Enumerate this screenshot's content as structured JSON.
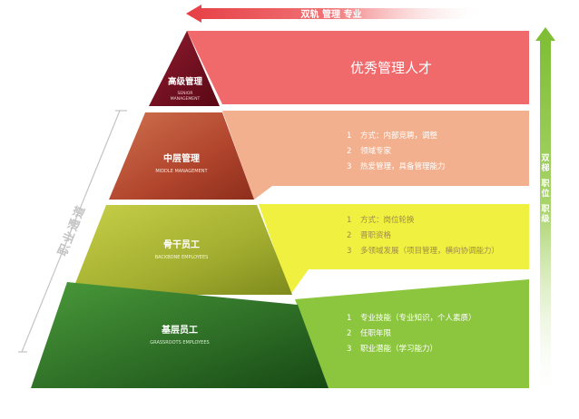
{
  "top_arrow": {
    "label": "双轨 管理 专业"
  },
  "right_arrow": {
    "label_chars": [
      "双",
      "梯",
      "职",
      "位",
      "职",
      "级"
    ]
  },
  "left_channel": {
    "label_chars": [
      "职",
      "业",
      "通",
      "道"
    ]
  },
  "levels": [
    {
      "title": "高级管理",
      "subtitle_lines": [
        "SENIOR",
        "MANAGEMENT"
      ],
      "band_text": "优秀管理人才",
      "items": []
    },
    {
      "title": "中层管理",
      "subtitle_lines": [
        "MIDDLE MANAGEMENT"
      ],
      "items": [
        {
          "num": "1",
          "text": "方式：内部竞聘，调整"
        },
        {
          "num": "2",
          "text": "领域专家"
        },
        {
          "num": "3",
          "text": "热爱管理，具备管理能力"
        }
      ]
    },
    {
      "title": "骨干员工",
      "subtitle_lines": [
        "BACKBONE EMPLOYEES"
      ],
      "items": [
        {
          "num": "1",
          "text": "方式：岗位轮换"
        },
        {
          "num": "2",
          "text": "晋职资格"
        },
        {
          "num": "3",
          "text": "多领域发展（项目管理，横向协调能力）"
        }
      ]
    },
    {
      "title": "基层员工",
      "subtitle_lines": [
        "GRASSROOTS EMPLOYEES"
      ],
      "items": [
        {
          "num": "1",
          "text": "专业技能（专业知识，个人素质）"
        },
        {
          "num": "2",
          "text": "任职年限"
        },
        {
          "num": "3",
          "text": "职业潜能（学习能力）"
        }
      ]
    }
  ],
  "colors": {
    "band_1": "#f06a6c",
    "band_2": "#f3b08e",
    "band_3": "#eff040",
    "band_4": "#8cc63e",
    "tier_1": "#7a1022",
    "tier_2": "#b2452e",
    "tier_3": "#a5b134",
    "tier_4": "#2a6a25",
    "red_arrow": "#e84b4e",
    "green_arrow": "#8cc63e"
  }
}
